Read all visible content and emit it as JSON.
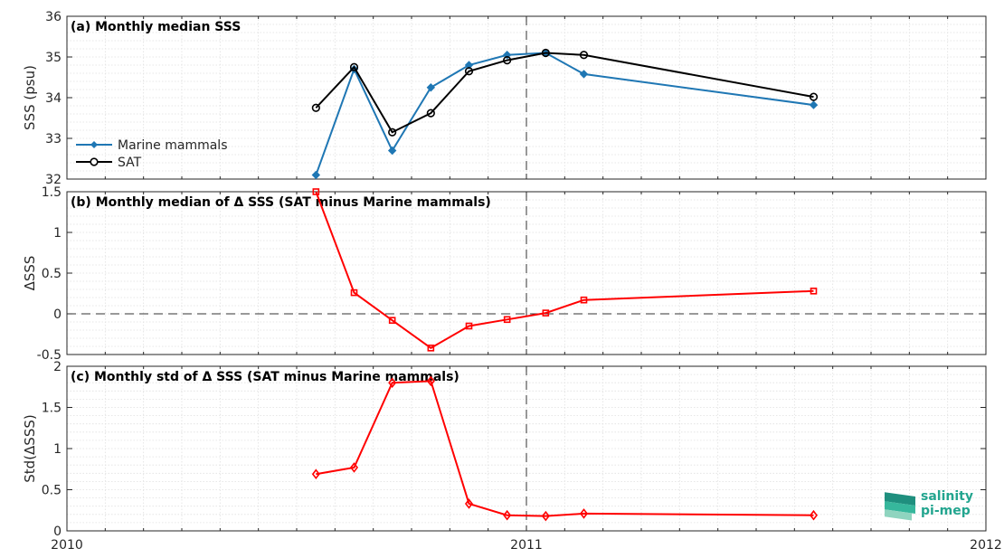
{
  "x_axis": {
    "ticks": [
      "2010",
      "2011",
      "2012"
    ],
    "range": [
      2010.0,
      2012.0
    ],
    "vline": 2011.0
  },
  "chart_data": [
    {
      "type": "line",
      "title": "(a) Monthly median SSS",
      "ylabel": "SSS (psu)",
      "ylim": [
        32,
        36
      ],
      "yticks": [
        "32",
        "33",
        "34",
        "35",
        "36"
      ],
      "legend": "left",
      "grid": true,
      "series": [
        {
          "name": "Marine mammals",
          "color": "#1f77b4",
          "marker": "diamond-filled",
          "x": [
            2010.542,
            2010.625,
            2010.708,
            2010.792,
            2010.875,
            2010.958,
            2011.042,
            2011.125,
            2011.625
          ],
          "y": [
            32.1,
            34.7,
            32.7,
            34.25,
            34.8,
            35.05,
            35.1,
            34.58,
            33.82
          ]
        },
        {
          "name": "SAT",
          "color": "#000000",
          "marker": "circle-open",
          "x": [
            2010.542,
            2010.625,
            2010.708,
            2010.792,
            2010.875,
            2010.958,
            2011.042,
            2011.125,
            2011.625
          ],
          "y": [
            33.75,
            34.75,
            33.15,
            33.62,
            34.65,
            34.92,
            35.1,
            35.05,
            34.02
          ]
        }
      ]
    },
    {
      "type": "line",
      "title": "(b) Monthly median of Δ SSS (SAT minus Marine mammals)",
      "ylabel": "ΔSSS",
      "ylim": [
        -0.5,
        1.5
      ],
      "yticks": [
        "-0.5",
        "0",
        "0.5",
        "1",
        "1.5"
      ],
      "hline": 0,
      "grid": true,
      "series": [
        {
          "color": "#ff0000",
          "marker": "square-open",
          "x": [
            2010.542,
            2010.625,
            2010.708,
            2010.792,
            2010.875,
            2010.958,
            2011.042,
            2011.125,
            2011.625
          ],
          "y": [
            1.5,
            0.26,
            -0.08,
            -0.42,
            -0.15,
            -0.07,
            0.01,
            0.17,
            0.28
          ]
        }
      ]
    },
    {
      "type": "line",
      "title": "(c) Monthly std of Δ SSS (SAT minus Marine mammals)",
      "ylabel": "Std(ΔSSS)",
      "ylim": [
        0,
        2
      ],
      "yticks": [
        "0",
        "0.5",
        "1",
        "1.5",
        "2"
      ],
      "grid": true,
      "series": [
        {
          "color": "#ff0000",
          "marker": "diamond-open",
          "x": [
            2010.542,
            2010.625,
            2010.708,
            2010.792,
            2010.875,
            2010.958,
            2011.042,
            2011.125,
            2011.625
          ],
          "y": [
            0.69,
            0.77,
            1.8,
            1.82,
            0.33,
            0.19,
            0.18,
            0.21,
            0.19
          ]
        }
      ]
    }
  ],
  "logo": {
    "line1": "salinity",
    "line2": "pi-mep",
    "color": "#23a58f"
  }
}
